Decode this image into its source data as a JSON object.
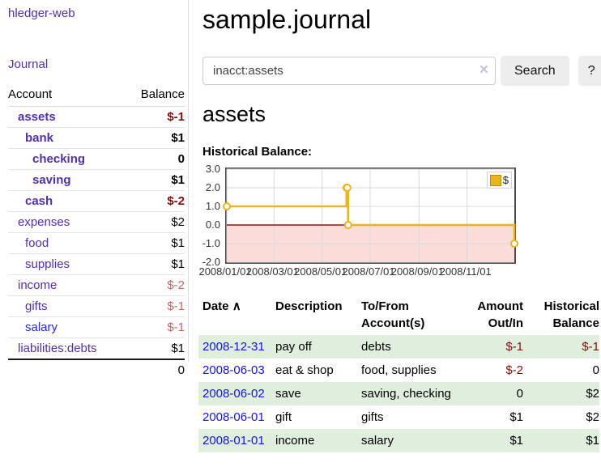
{
  "app": {
    "title": "hledger-web"
  },
  "sidebar": {
    "journal_label": "Journal",
    "account_header": "Account",
    "balance_header": "Balance",
    "accounts": [
      {
        "label": "assets",
        "balance": "$-1"
      },
      {
        "label": "bank",
        "balance": "$1"
      },
      {
        "label": "checking",
        "balance": "0"
      },
      {
        "label": "saving",
        "balance": "$1"
      },
      {
        "label": "cash",
        "balance": "$-2"
      },
      {
        "label": "expenses",
        "balance": "$2"
      },
      {
        "label": "food",
        "balance": "$1"
      },
      {
        "label": "supplies",
        "balance": "$1"
      },
      {
        "label": "income",
        "balance": "$-2"
      },
      {
        "label": "gifts",
        "balance": "$-1"
      },
      {
        "label": "salary",
        "balance": "$-1"
      },
      {
        "label": "liabilities:debts",
        "balance": "$1"
      }
    ],
    "total": "0"
  },
  "header": {
    "title": "sample.journal"
  },
  "search": {
    "value": "inacct:assets",
    "button_label": "Search",
    "help_label": "?",
    "clear_glyph": "×"
  },
  "account_page": {
    "heading": "assets"
  },
  "chart_data": {
    "type": "line",
    "title": "Historical Balance:",
    "step": true,
    "xlim": [
      "2008-01-01",
      "2008-12-31"
    ],
    "ylim": [
      -2,
      3
    ],
    "yticks": [
      3.0,
      2.0,
      1.0,
      0.0,
      -1.0,
      -2.0
    ],
    "xticks": [
      {
        "date": "2008-01-01",
        "label": "2008/01/01"
      },
      {
        "date": "2008-03-01",
        "label": "2008/03/01"
      },
      {
        "date": "2008-05-01",
        "label": "2008/05/01"
      },
      {
        "date": "2008-07-01",
        "label": "2008/07/01"
      },
      {
        "date": "2008-09-01",
        "label": "2008/09/01"
      },
      {
        "date": "2008-11-01",
        "label": "2008/11/01"
      }
    ],
    "series": [
      {
        "name": "$",
        "color": "#e8b420",
        "points": [
          [
            "2008-01-01",
            1
          ],
          [
            "2008-06-01",
            2
          ],
          [
            "2008-06-02",
            2
          ],
          [
            "2008-06-03",
            0
          ],
          [
            "2008-12-31",
            -1
          ]
        ]
      }
    ],
    "zero_line_color": "#8b1414",
    "negative_region_color": "#fcdcd8",
    "grid_color": "#d8d8d8",
    "legend_position": "top-right"
  },
  "transactions": {
    "headers": {
      "date": "Date",
      "description": "Description",
      "accounts": "To/From Account(s)",
      "amount": "Amount Out/In",
      "balance": "Historical Balance"
    },
    "sort_icon_glyph": "∧",
    "rows": [
      {
        "date": "2008-12-31",
        "description": "pay off",
        "accounts": "debts",
        "amount": "$-1",
        "balance": "$-1"
      },
      {
        "date": "2008-06-03",
        "description": "eat & shop",
        "accounts": "food, supplies",
        "amount": "$-2",
        "balance": "0"
      },
      {
        "date": "2008-06-02",
        "description": "save",
        "accounts": "saving, checking",
        "amount": "0",
        "balance": "$2"
      },
      {
        "date": "2008-06-01",
        "description": "gift",
        "accounts": "gifts",
        "amount": "$1",
        "balance": "$2"
      },
      {
        "date": "2008-01-01",
        "description": "income",
        "accounts": "salary",
        "amount": "$1",
        "balance": "$1"
      }
    ]
  }
}
